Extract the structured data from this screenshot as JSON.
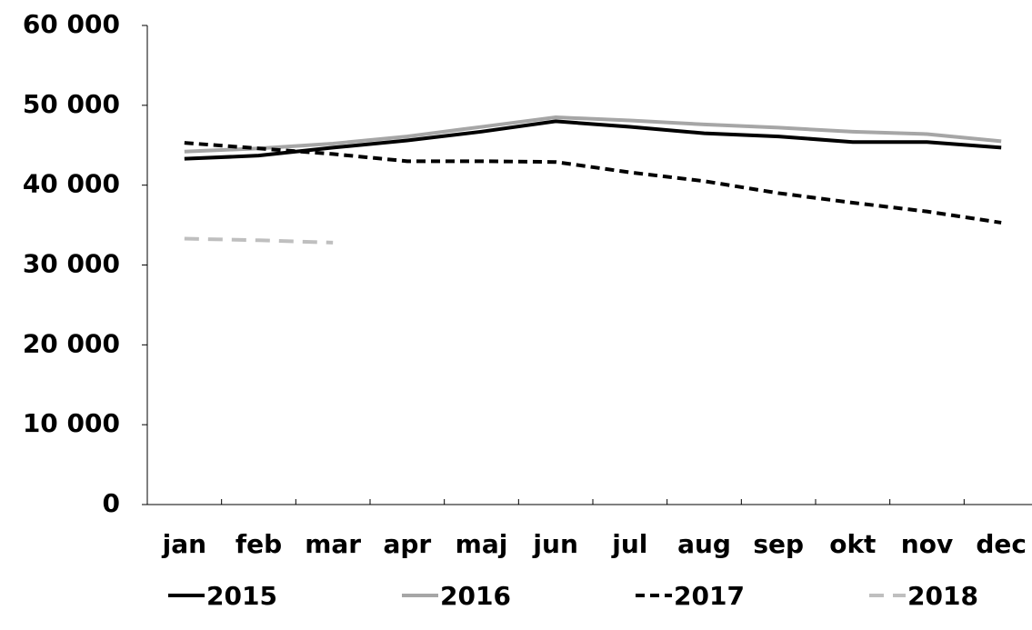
{
  "chart_data": {
    "type": "line",
    "categories": [
      "jan",
      "feb",
      "mar",
      "apr",
      "maj",
      "jun",
      "jul",
      "aug",
      "sep",
      "okt",
      "nov",
      "dec"
    ],
    "series": [
      {
        "name": "2015",
        "color": "#000000",
        "dash": "solid",
        "values": [
          43300,
          43700,
          44700,
          45600,
          46700,
          48000,
          47300,
          46500,
          46100,
          45400,
          45400,
          44700
        ]
      },
      {
        "name": "2016",
        "color": "#a6a6a6",
        "dash": "solid",
        "values": [
          44200,
          44600,
          45200,
          46100,
          47300,
          48500,
          48100,
          47600,
          47200,
          46700,
          46400,
          45500
        ]
      },
      {
        "name": "2017",
        "color": "#000000",
        "dash": "dashed",
        "values": [
          45300,
          44600,
          43900,
          43000,
          43000,
          42900,
          41600,
          40500,
          39000,
          37800,
          36700,
          35300
        ]
      },
      {
        "name": "2018",
        "color": "#bfbfbf",
        "dash": "dashed",
        "values": [
          33300,
          33100,
          32800,
          null,
          null,
          null,
          null,
          null,
          null,
          null,
          null,
          null
        ]
      }
    ],
    "ylim": [
      0,
      60000
    ],
    "yticks": [
      {
        "value": 0,
        "label": "0"
      },
      {
        "value": 10000,
        "label": "10 000"
      },
      {
        "value": 20000,
        "label": "20 000"
      },
      {
        "value": 30000,
        "label": "30 000"
      },
      {
        "value": 40000,
        "label": "40 000"
      },
      {
        "value": 50000,
        "label": "50 000"
      },
      {
        "value": 60000,
        "label": "60 000"
      }
    ],
    "grid": false,
    "legend": "bottom"
  }
}
